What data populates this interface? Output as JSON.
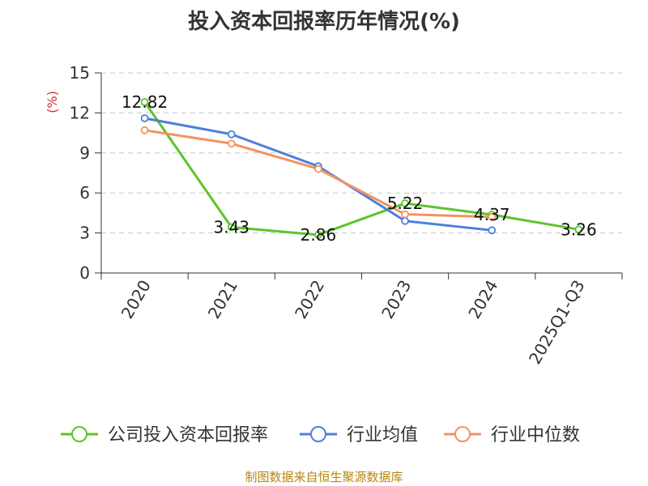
{
  "title": "投入资本回报率历年情况(%)",
  "source": "制图数据来自恒生聚源数据库",
  "chart_data": {
    "type": "line",
    "title": "投入资本回报率历年情况(%)",
    "xlabel": "",
    "ylabel": "(%)",
    "ylim": [
      0,
      15
    ],
    "yticks": [
      "0",
      "3",
      "6",
      "9",
      "12",
      "15"
    ],
    "categories": [
      "2020",
      "2021",
      "2022",
      "2023",
      "2024",
      "2025Q1-Q3"
    ],
    "grid": true,
    "legend_position": "bottom",
    "series": [
      {
        "name": "公司投入资本回报率",
        "color": "#5cc42a",
        "values": [
          12.82,
          3.43,
          2.86,
          5.22,
          4.37,
          3.26
        ],
        "labels": [
          "12.82",
          "3.43",
          "2.86",
          "5.22",
          "4.37",
          "3.26"
        ]
      },
      {
        "name": "行业均值",
        "color": "#4e7fdb",
        "values": [
          11.6,
          10.4,
          8.0,
          3.9,
          3.2,
          null
        ]
      },
      {
        "name": "行业中位数",
        "color": "#f39361",
        "values": [
          10.7,
          9.7,
          7.8,
          4.4,
          4.2,
          null
        ]
      }
    ]
  }
}
